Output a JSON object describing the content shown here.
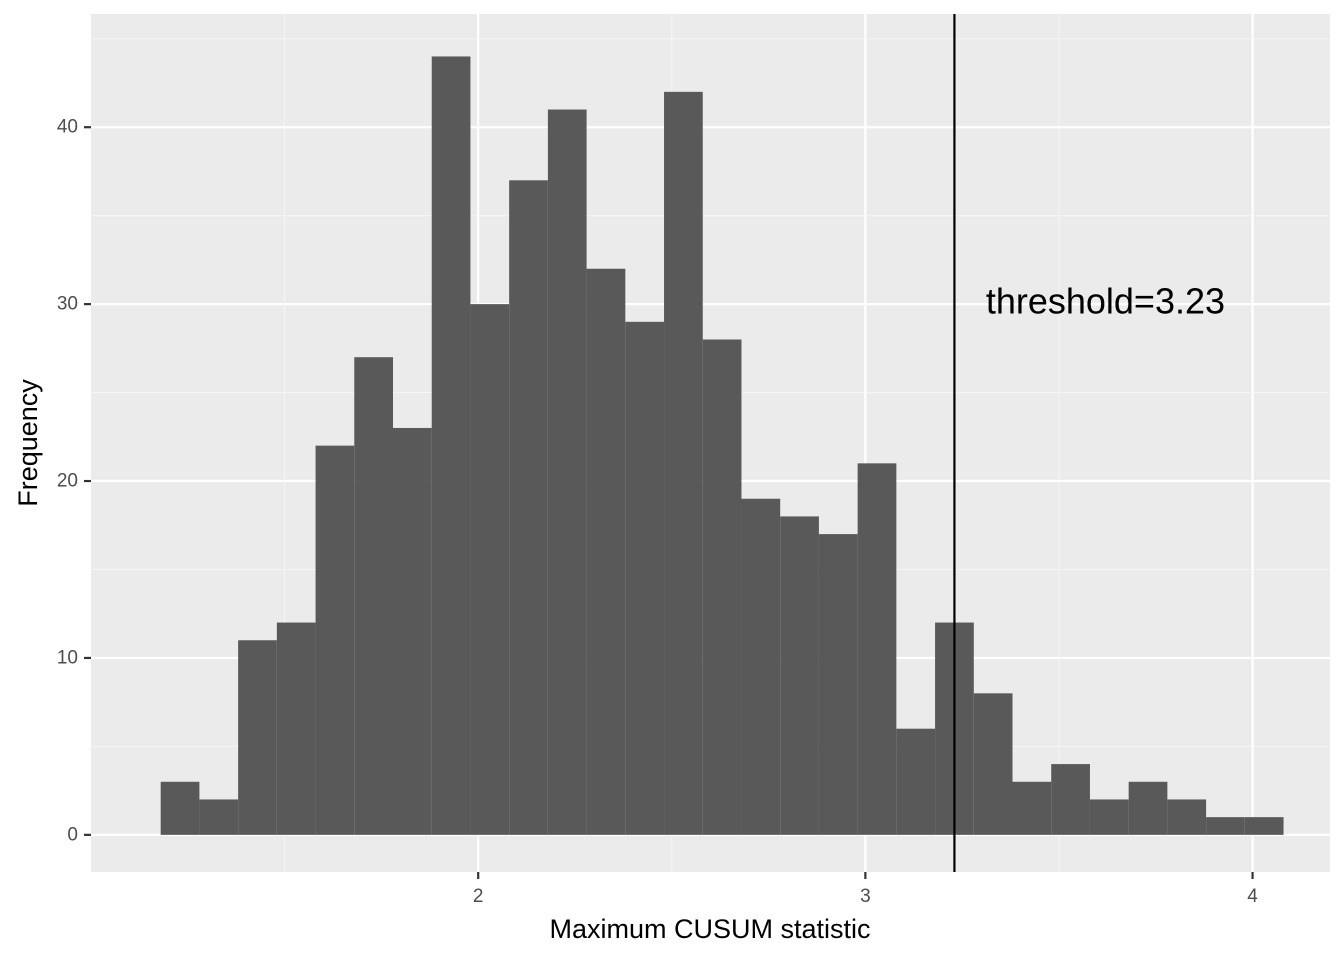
{
  "chart_data": {
    "type": "bar",
    "subtype": "histogram",
    "xlabel": "Maximum CUSUM statistic",
    "ylabel": "Frequency",
    "xlim": [
      1.0,
      4.2
    ],
    "ylim": [
      -2.1,
      46.4
    ],
    "x_ticks": [
      {
        "value": 2,
        "label": "2"
      },
      {
        "value": 3,
        "label": "3"
      },
      {
        "value": 4,
        "label": "4"
      }
    ],
    "y_ticks": [
      {
        "value": 0,
        "label": "0"
      },
      {
        "value": 10,
        "label": "10"
      },
      {
        "value": 20,
        "label": "20"
      },
      {
        "value": 30,
        "label": "30"
      },
      {
        "value": 40,
        "label": "40"
      }
    ],
    "x_minor_breaks": [
      1.5,
      2.5,
      3.5
    ],
    "y_minor_breaks": [
      5,
      15,
      25,
      35,
      45
    ],
    "bin_start": 1.18,
    "bin_width": 0.1,
    "counts": [
      3,
      2,
      11,
      12,
      22,
      27,
      23,
      44,
      30,
      37,
      41,
      32,
      29,
      42,
      28,
      19,
      18,
      17,
      21,
      6,
      12,
      8,
      3,
      4,
      2,
      3,
      2,
      1,
      1
    ],
    "threshold": {
      "value": 3.23,
      "label": "threshold=3.23",
      "label_x": 3.62,
      "label_y": 30
    },
    "grid": true,
    "colors": {
      "panel_background": "#ebebeb",
      "grid_major": "#ffffff",
      "grid_minor": "#f5f5f5",
      "bar_fill": "#595959",
      "threshold_line": "#000000",
      "tick_mark": "#333333"
    }
  }
}
